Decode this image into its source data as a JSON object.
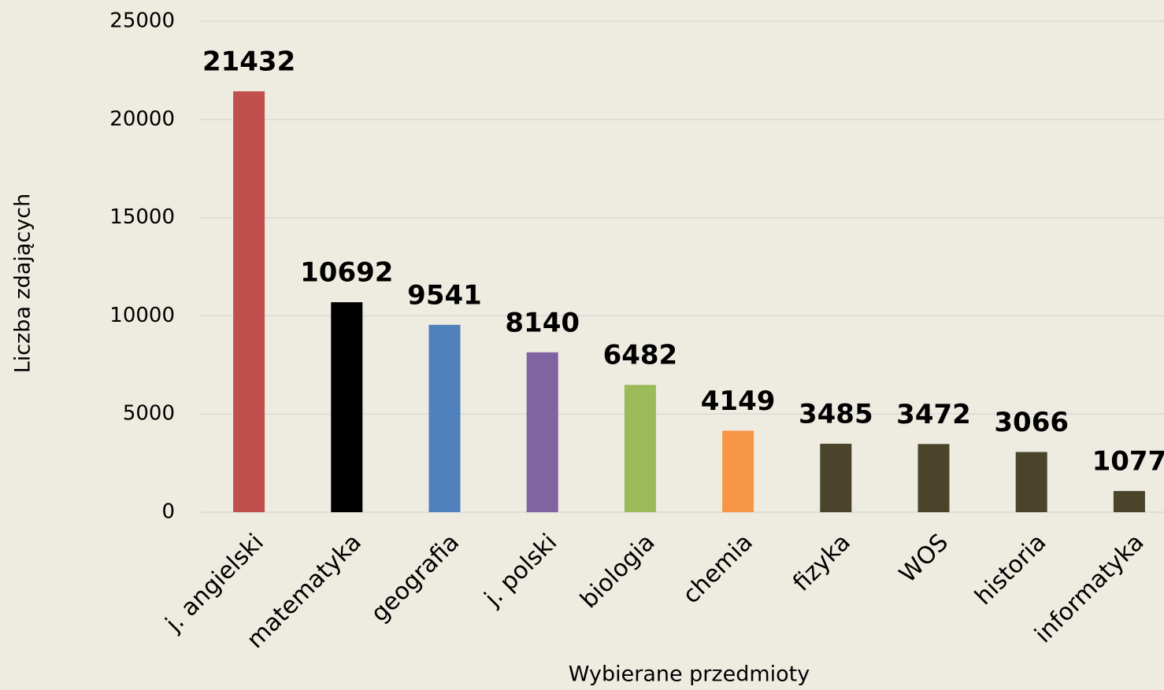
{
  "chart_data": {
    "type": "bar",
    "categories": [
      "j. angielski",
      "matematyka",
      "geografia",
      "j. polski",
      "biologia",
      "chemia",
      "fizyka",
      "WOS",
      "historia",
      "informatyka"
    ],
    "values": [
      21432,
      10692,
      9541,
      8140,
      6482,
      4149,
      3485,
      3472,
      3066,
      1077
    ],
    "colors": [
      "#c0504d",
      "#000000",
      "#4f81bd",
      "#8064a2",
      "#9bbb59",
      "#f79646",
      "#4a452a",
      "#4a452a",
      "#4a452a",
      "#4a452a"
    ],
    "x_label": "Wybierane przedmioty",
    "y_label": "Liczba zdających",
    "ylim": [
      0,
      25000
    ],
    "yticks": [
      0,
      5000,
      10000,
      15000,
      20000,
      25000
    ],
    "grid": true,
    "data_labels": true
  }
}
